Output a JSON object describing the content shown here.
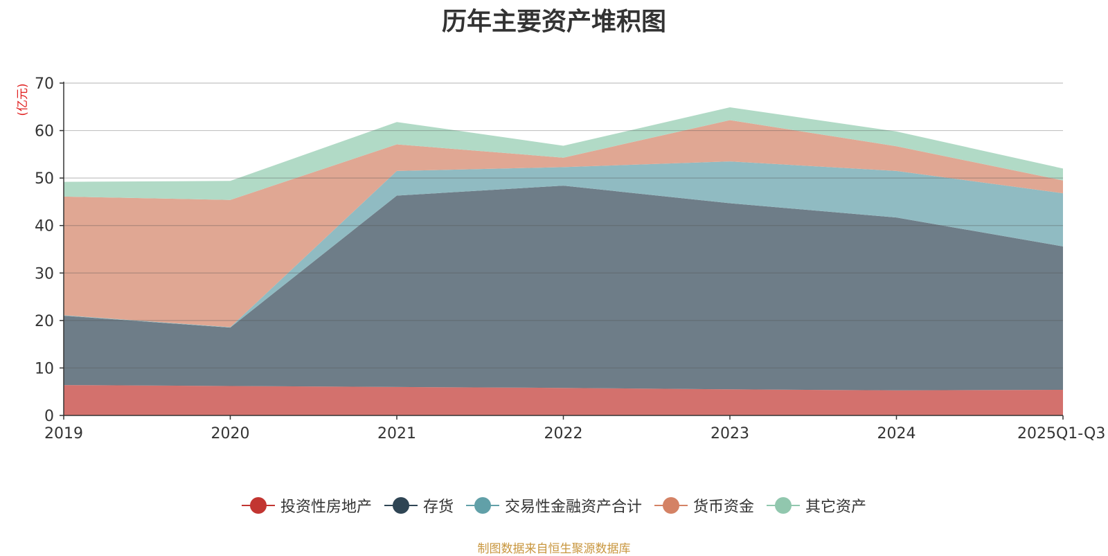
{
  "chart_data": {
    "type": "area",
    "stacked": true,
    "title": "历年主要资产堆积图",
    "ylabel": "(亿元)",
    "xlabel": "",
    "categories": [
      "2019",
      "2020",
      "2021",
      "2022",
      "2023",
      "2024",
      "2025Q1-Q3"
    ],
    "ylim": [
      0,
      70
    ],
    "yticks": [
      0,
      10,
      20,
      30,
      40,
      50,
      60,
      70
    ],
    "grid": true,
    "legend_position": "bottom",
    "series": [
      {
        "name": "投资性房地产",
        "color": "#c23531",
        "fill": "#d3716d",
        "values": [
          6.4,
          6.2,
          6.0,
          5.8,
          5.5,
          5.3,
          5.4
        ]
      },
      {
        "name": "存货",
        "color": "#2f4554",
        "fill": "#6e7d88",
        "values": [
          14.6,
          12.3,
          40.3,
          42.6,
          39.2,
          36.4,
          30.2
        ]
      },
      {
        "name": "交易性金融资产合计",
        "color": "#61a0a8",
        "fill": "#90bbc2",
        "values": [
          0.1,
          0.1,
          5.2,
          3.9,
          8.8,
          9.8,
          11.2
        ]
      },
      {
        "name": "货币资金",
        "color": "#d48265",
        "fill": "#e0a793",
        "values": [
          25.0,
          26.8,
          5.6,
          2.0,
          8.7,
          5.2,
          2.7
        ]
      },
      {
        "name": "其它资产",
        "color": "#91c7ae",
        "fill": "#b1dac6",
        "values": [
          3.1,
          4.0,
          4.7,
          2.5,
          2.7,
          3.1,
          2.5
        ]
      }
    ]
  },
  "source_note": "制图数据来自恒生聚源数据库"
}
